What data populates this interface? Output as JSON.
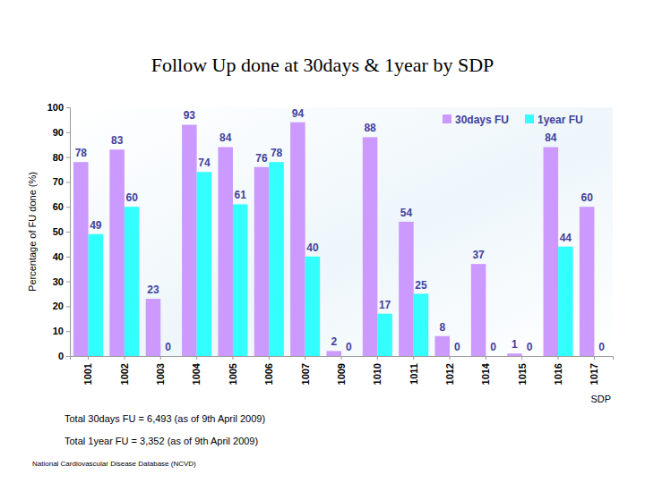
{
  "chart_data": {
    "type": "bar",
    "title": "Follow Up done at 30days & 1year by SDP",
    "x_label": "SDP",
    "y_label": "Percentage of FU done (%)",
    "categories": [
      "1001",
      "1002",
      "1003",
      "1004",
      "1005",
      "1006",
      "1007",
      "1009",
      "1010",
      "1011",
      "1012",
      "1014",
      "1015",
      "1016",
      "1017"
    ],
    "series": [
      {
        "name": "30days FU",
        "color": "#cc99ff",
        "values": [
          78,
          83,
          23,
          93,
          84,
          76,
          94,
          2,
          88,
          54,
          8,
          37,
          1,
          84,
          60
        ]
      },
      {
        "name": "1year FU",
        "color": "#33ffff",
        "values": [
          49,
          60,
          0,
          74,
          61,
          78,
          40,
          0,
          17,
          25,
          0,
          0,
          0,
          44,
          0
        ]
      }
    ],
    "ylim": [
      0,
      100
    ],
    "yticks": [
      0,
      10,
      20,
      30,
      40,
      50,
      60,
      70,
      80,
      90,
      100
    ],
    "grid": false,
    "legend": "upper right",
    "data_labels": true,
    "annotations": [
      "Total 30days FU = 6,493 (as of 9th April 2009)",
      "Total 1year FU = 3,352 (as of 9th April 2009)",
      "National Cardiovascular Disease Database (NCVD)"
    ]
  }
}
